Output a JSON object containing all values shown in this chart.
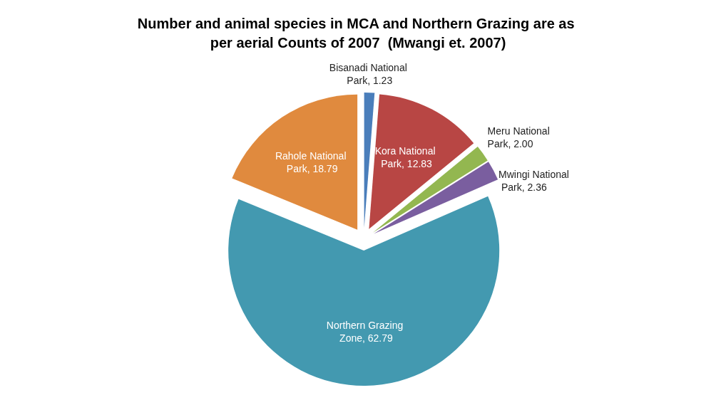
{
  "chart_data": {
    "type": "pie",
    "title": "Number and animal species in MCA and Northern Grazing are as per aerial Counts of 2007  (Mwangi et. 2007)",
    "categories": [
      "Bisanadi National Park",
      "Kora National Park",
      "Meru National Park",
      "Mwingi National Park",
      "Northern Grazing Zone",
      "Rahole National Park"
    ],
    "values": [
      1.23,
      12.83,
      2.0,
      2.36,
      62.79,
      18.79
    ],
    "value_labels": [
      "1.23",
      "12.83",
      "2.00",
      "2.36",
      "62.79",
      "18.79"
    ],
    "colors": [
      "#4a7ebb",
      "#b84644",
      "#93b750",
      "#7a5e9f",
      "#4399b0",
      "#e08a3e"
    ],
    "legend": false
  }
}
